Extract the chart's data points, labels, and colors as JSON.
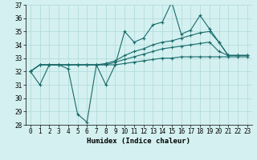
{
  "xlabel": "Humidex (Indice chaleur)",
  "background_color": "#d4f0f0",
  "grid_color": "#aed8d8",
  "line_color": "#1a6b6b",
  "xlim": [
    -0.5,
    23.5
  ],
  "ylim": [
    28,
    37
  ],
  "xticks": [
    0,
    1,
    2,
    3,
    4,
    5,
    6,
    7,
    8,
    9,
    10,
    11,
    12,
    13,
    14,
    15,
    16,
    17,
    18,
    19,
    20,
    21,
    22,
    23
  ],
  "yticks": [
    28,
    29,
    30,
    31,
    32,
    33,
    34,
    35,
    36,
    37
  ],
  "line1_y": [
    32.0,
    31.0,
    32.5,
    32.5,
    32.2,
    28.8,
    28.2,
    32.5,
    31.0,
    32.5,
    35.0,
    34.2,
    34.5,
    35.5,
    35.7,
    37.2,
    34.8,
    35.1,
    36.2,
    35.2,
    34.2,
    33.2,
    33.2,
    33.2
  ],
  "line2_y": [
    32.0,
    32.5,
    32.5,
    32.5,
    32.5,
    32.5,
    32.5,
    32.5,
    32.6,
    32.8,
    33.2,
    33.5,
    33.7,
    34.0,
    34.2,
    34.3,
    34.5,
    34.7,
    34.9,
    35.0,
    34.2,
    33.2,
    33.2,
    33.2
  ],
  "line3_y": [
    32.0,
    32.5,
    32.5,
    32.5,
    32.5,
    32.5,
    32.5,
    32.5,
    32.5,
    32.7,
    32.9,
    33.1,
    33.3,
    33.5,
    33.7,
    33.8,
    33.9,
    34.0,
    34.1,
    34.2,
    33.5,
    33.2,
    33.2,
    33.2
  ],
  "line4_y": [
    32.0,
    32.5,
    32.5,
    32.5,
    32.5,
    32.5,
    32.5,
    32.5,
    32.5,
    32.5,
    32.6,
    32.7,
    32.8,
    32.9,
    33.0,
    33.0,
    33.1,
    33.1,
    33.1,
    33.1,
    33.1,
    33.1,
    33.1,
    33.1
  ],
  "tick_fontsize": 5.5,
  "xlabel_fontsize": 6.5
}
